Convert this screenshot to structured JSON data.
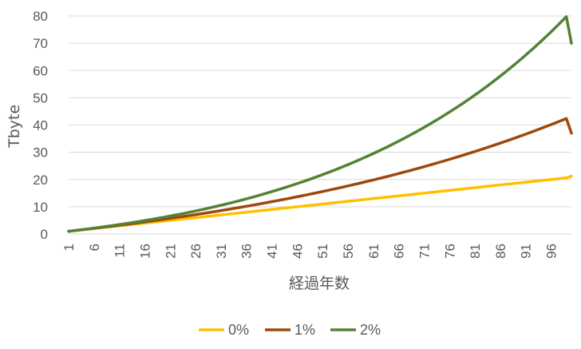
{
  "chart_data": {
    "type": "line",
    "title": "",
    "xlabel": "経過年数",
    "ylabel": "Tbyte",
    "x": [
      1,
      2,
      3,
      4,
      5,
      6,
      7,
      8,
      9,
      10,
      11,
      12,
      13,
      14,
      15,
      16,
      17,
      18,
      19,
      20,
      21,
      22,
      23,
      24,
      25,
      26,
      27,
      28,
      29,
      30,
      31,
      32,
      33,
      34,
      35,
      36,
      37,
      38,
      39,
      40,
      41,
      42,
      43,
      44,
      45,
      46,
      47,
      48,
      49,
      50,
      51,
      52,
      53,
      54,
      55,
      56,
      57,
      58,
      59,
      60,
      61,
      62,
      63,
      64,
      65,
      66,
      67,
      68,
      69,
      70,
      71,
      72,
      73,
      74,
      75,
      76,
      77,
      78,
      79,
      80,
      81,
      82,
      83,
      84,
      85,
      86,
      87,
      88,
      89,
      90,
      91,
      92,
      93,
      94,
      95,
      96,
      97,
      98,
      99,
      100
    ],
    "xticks": [
      "1",
      "6",
      "11",
      "16",
      "21",
      "26",
      "31",
      "36",
      "41",
      "46",
      "51",
      "56",
      "61",
      "66",
      "71",
      "76",
      "81",
      "86",
      "91",
      "96"
    ],
    "ylim": [
      0,
      80
    ],
    "yticks": [
      "0",
      "10",
      "20",
      "30",
      "40",
      "50",
      "60",
      "70",
      "80"
    ],
    "grid": true,
    "legend_position": "bottom",
    "series": [
      {
        "name": "0%",
        "color": "#FFC000",
        "values": [
          1.0,
          1.2,
          1.4,
          1.6,
          1.8,
          2.0,
          2.2,
          2.4,
          2.6,
          2.8,
          3.0,
          3.2,
          3.4,
          3.6,
          3.8,
          4.0,
          4.2,
          4.4,
          4.6,
          4.8,
          5.0,
          5.2,
          5.4,
          5.6,
          5.8,
          6.0,
          6.2,
          6.4,
          6.6,
          6.8,
          7.0,
          7.2,
          7.4,
          7.6,
          7.8,
          8.0,
          8.2,
          8.4,
          8.6,
          8.8,
          9.0,
          9.2,
          9.4,
          9.6,
          9.8,
          10.0,
          10.2,
          10.4,
          10.6,
          10.8,
          11.0,
          11.2,
          11.4,
          11.6,
          11.8,
          12.0,
          12.2,
          12.4,
          12.6,
          12.8,
          13.0,
          13.2,
          13.4,
          13.6,
          13.8,
          14.0,
          14.2,
          14.4,
          14.6,
          14.8,
          15.0,
          15.2,
          15.4,
          15.6,
          15.8,
          16.0,
          16.2,
          16.4,
          16.6,
          16.8,
          17.0,
          17.2,
          17.4,
          17.6,
          17.8,
          18.0,
          18.2,
          18.4,
          18.6,
          18.8,
          19.0,
          19.2,
          19.4,
          19.6,
          19.8,
          20.0,
          20.2,
          20.4,
          20.6,
          21.2
        ]
      },
      {
        "name": "1%",
        "color": "#9E480E",
        "values": [
          1.0,
          1.21,
          1.42,
          1.63,
          1.85,
          2.07,
          2.29,
          2.52,
          2.75,
          2.98,
          3.21,
          3.45,
          3.69,
          3.93,
          4.18,
          4.43,
          4.68,
          4.94,
          5.2,
          5.46,
          5.73,
          6.0,
          6.27,
          6.55,
          6.83,
          7.11,
          7.4,
          7.69,
          7.99,
          8.29,
          8.59,
          8.9,
          9.21,
          9.53,
          9.85,
          10.17,
          10.5,
          10.83,
          11.17,
          11.51,
          11.86,
          12.21,
          12.56,
          12.92,
          13.29,
          13.66,
          14.03,
          14.41,
          14.8,
          15.19,
          15.58,
          15.98,
          16.39,
          16.8,
          17.22,
          17.64,
          18.07,
          18.5,
          18.94,
          19.39,
          19.84,
          20.3,
          20.76,
          21.23,
          21.71,
          22.19,
          22.68,
          23.18,
          23.68,
          24.19,
          24.71,
          25.23,
          25.76,
          26.3,
          26.85,
          27.4,
          27.96,
          28.53,
          29.1,
          29.69,
          30.28,
          30.88,
          31.48,
          32.1,
          32.72,
          33.35,
          33.99,
          34.64,
          35.3,
          35.97,
          36.64,
          37.33,
          38.02,
          38.72,
          39.44,
          40.16,
          40.89,
          41.63,
          42.38,
          37.0
        ]
      },
      {
        "name": "2%",
        "color": "#548235",
        "values": [
          1.0,
          1.22,
          1.45,
          1.68,
          1.92,
          2.16,
          2.41,
          2.67,
          2.93,
          3.2,
          3.47,
          3.75,
          4.04,
          4.33,
          4.63,
          4.94,
          5.26,
          5.58,
          5.91,
          6.25,
          6.6,
          6.95,
          7.31,
          7.68,
          8.06,
          8.45,
          8.85,
          9.26,
          9.68,
          10.11,
          10.55,
          11.0,
          11.46,
          11.93,
          12.41,
          12.9,
          13.4,
          13.92,
          14.45,
          14.99,
          15.54,
          16.1,
          16.68,
          17.27,
          17.87,
          18.49,
          19.12,
          19.76,
          20.42,
          21.09,
          21.78,
          22.48,
          23.2,
          23.93,
          24.68,
          25.45,
          26.23,
          27.03,
          27.85,
          28.68,
          29.53,
          30.4,
          31.29,
          32.2,
          33.13,
          34.08,
          35.05,
          36.04,
          37.05,
          38.08,
          39.13,
          40.21,
          41.31,
          42.43,
          43.58,
          44.75,
          45.95,
          47.17,
          48.42,
          49.7,
          51.0,
          52.33,
          53.69,
          55.08,
          56.5,
          57.95,
          59.43,
          60.94,
          62.48,
          64.05,
          65.65,
          67.29,
          68.96,
          70.67,
          72.41,
          74.19,
          76.01,
          77.86,
          79.75,
          70.0
        ]
      }
    ]
  }
}
